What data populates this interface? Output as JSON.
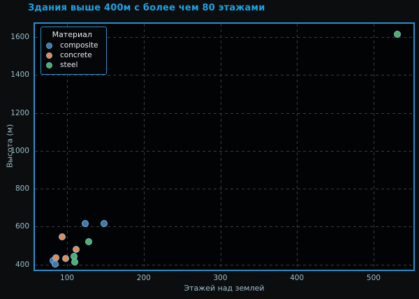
{
  "title": "Здания выше 400м с более чем 80 этажами",
  "colors": {
    "figure_background": "#0b0d0f",
    "axes_background": "#020304",
    "spine": "#2591cf",
    "title": "#1da2e2",
    "tick_label": "#9fbecb",
    "grid": "#3a3d3f",
    "legend_text": "#e9eef2",
    "marker_edge": "#78c3e6"
  },
  "chart_data": {
    "type": "scatter",
    "title": "Здания выше 400м с более чем 80 этажами",
    "xlabel": "Этажей над землей",
    "ylabel": "Высота (м)",
    "xlim": [
      58,
      552
    ],
    "ylim": [
      373,
      1670
    ],
    "x_ticks": [
      100,
      200,
      300,
      400,
      500
    ],
    "y_ticks": [
      400,
      600,
      800,
      1000,
      1200,
      1400,
      1600
    ],
    "grid": true,
    "legend": {
      "title": "Материал",
      "position": "upper-left"
    },
    "series": [
      {
        "name": "composite",
        "color": "#4477ae",
        "points": [
          [
            124,
            615
          ],
          [
            148,
            615
          ],
          [
            82,
            422
          ],
          [
            84,
            404
          ]
        ]
      },
      {
        "name": "concrete",
        "color": "#e68a5c",
        "points": [
          [
            94,
            546
          ],
          [
            112,
            480
          ],
          [
            85,
            434
          ],
          [
            98,
            432
          ]
        ]
      },
      {
        "name": "steel",
        "color": "#4fae6e",
        "points": [
          [
            128,
            522
          ],
          [
            109,
            443
          ],
          [
            110,
            412
          ],
          [
            531,
            1616
          ]
        ]
      }
    ]
  }
}
